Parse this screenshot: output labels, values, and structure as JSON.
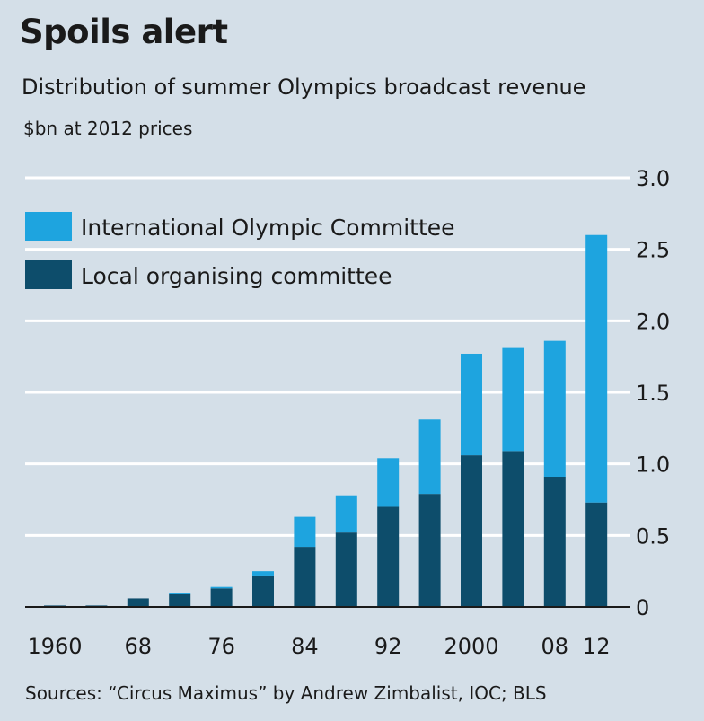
{
  "header": {
    "title": "Spoils alert",
    "subtitle": "Distribution of summer Olympics broadcast revenue",
    "unit": "$bn at 2012 prices"
  },
  "footer": {
    "source": "Sources: “Circus Maximus” by Andrew Zimbalist, IOC; BLS"
  },
  "colors": {
    "background": "#d4dfe8",
    "ioc": "#1ea4df",
    "local": "#0d4d6b",
    "gridline": "#ffffff",
    "baseline": "#1a1a1a"
  },
  "chart_data": {
    "type": "bar",
    "stacked": true,
    "title": "Spoils alert",
    "subtitle": "Distribution of summer Olympics broadcast revenue",
    "ylabel": "$bn at 2012 prices",
    "ylim": [
      0,
      3.0
    ],
    "yticks": [
      "0",
      "0.5",
      "1.0",
      "1.5",
      "2.0",
      "2.5",
      "3.0"
    ],
    "ytick_values": [
      0,
      0.5,
      1.0,
      1.5,
      2.0,
      2.5,
      3.0
    ],
    "categories": [
      "1960",
      "1964",
      "1968",
      "1972",
      "1976",
      "1980",
      "1984",
      "1988",
      "1992",
      "1996",
      "2000",
      "2004",
      "2008",
      "2012"
    ],
    "xtick_labels": [
      "1960",
      "",
      "68",
      "",
      "76",
      "",
      "84",
      "",
      "92",
      "",
      "2000",
      "",
      "08",
      "12"
    ],
    "grid": true,
    "legend_position": "top-left",
    "series": [
      {
        "name": "Local organising committee",
        "color": "#0d4d6b",
        "values": [
          0.01,
          0.01,
          0.06,
          0.09,
          0.13,
          0.22,
          0.42,
          0.52,
          0.7,
          0.79,
          1.06,
          1.09,
          0.91,
          0.73
        ]
      },
      {
        "name": "International Olympic Committee",
        "color": "#1ea4df",
        "values": [
          0.0,
          0.0,
          0.0,
          0.01,
          0.01,
          0.03,
          0.21,
          0.26,
          0.34,
          0.52,
          0.71,
          0.72,
          0.95,
          1.87
        ]
      }
    ],
    "legend": [
      {
        "name": "International Olympic Committee",
        "color": "#1ea4df"
      },
      {
        "name": "Local organising committee",
        "color": "#0d4d6b"
      }
    ]
  }
}
